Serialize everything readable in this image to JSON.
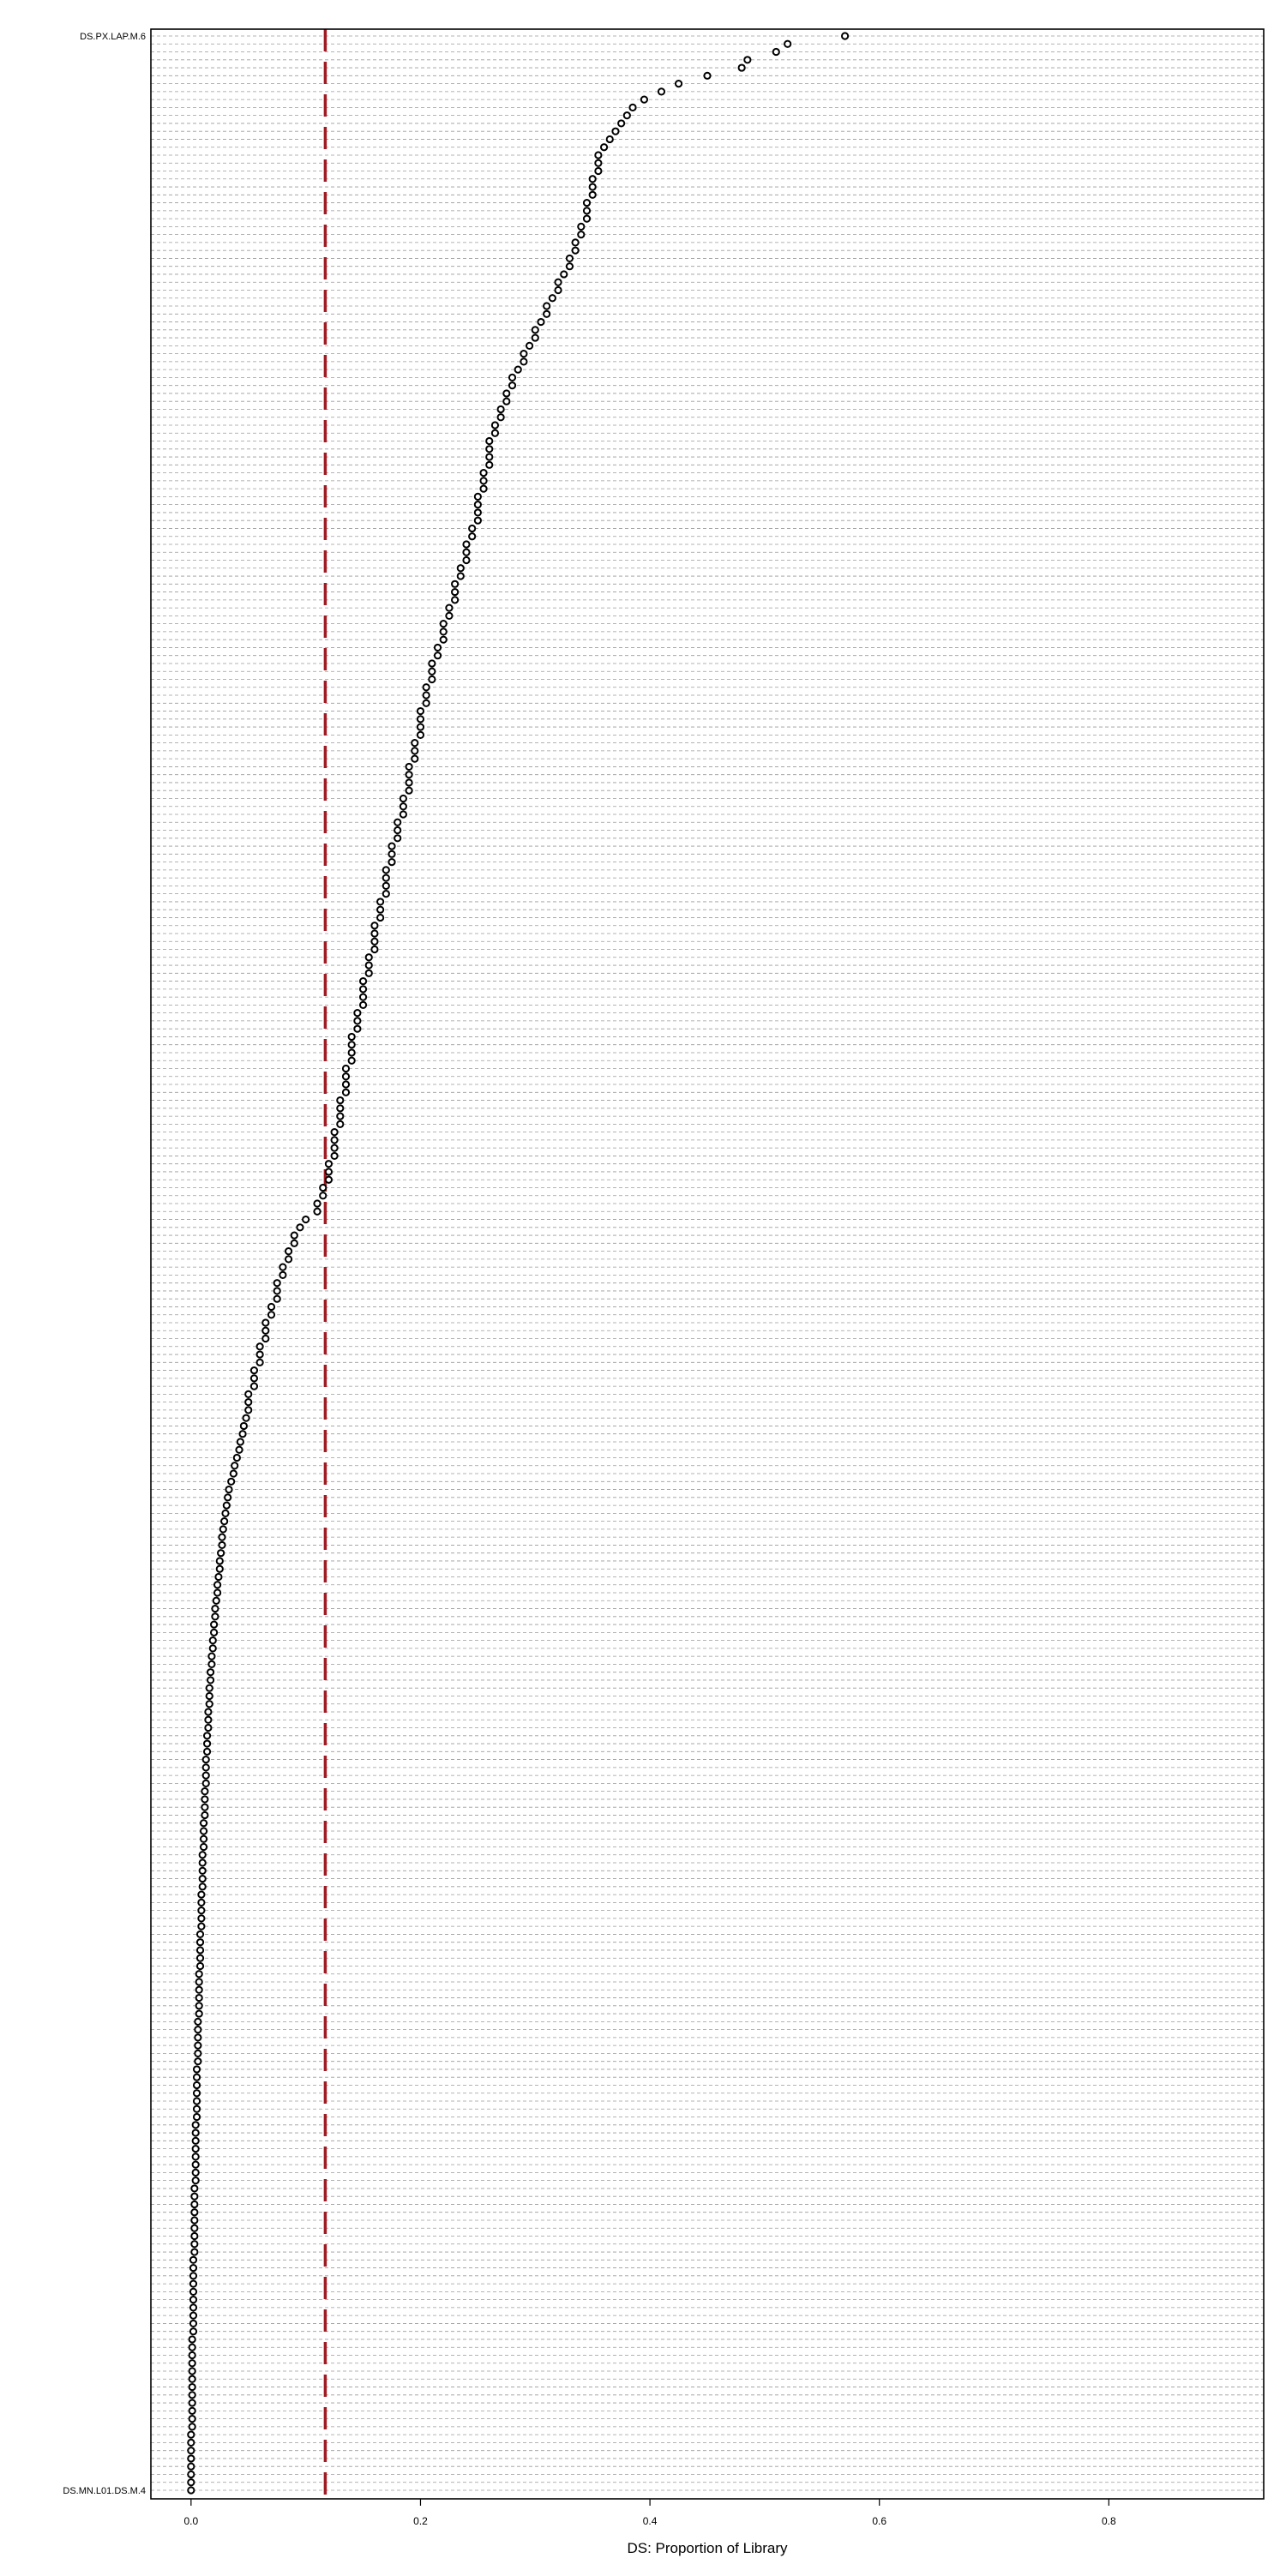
{
  "chart_data": {
    "type": "scatter",
    "xlabel": "DS: Proportion of Library",
    "xlim": [
      -0.035,
      0.935
    ],
    "xticks": [
      0.0,
      0.2,
      0.4,
      0.6,
      0.8
    ],
    "xtick_labels": [
      "0.0",
      "0.2",
      "0.4",
      "0.6",
      "0.8"
    ],
    "reference_line": {
      "x": 0.117,
      "color": "#a01c24",
      "style": "dashed"
    },
    "grid": "dashed horizontal per row",
    "visible_row_labels": [
      "DS.PX.LAP.M.6",
      "DS.MN.L01.DS.M.4"
    ],
    "values": [
      0.57,
      0.52,
      0.51,
      0.485,
      0.48,
      0.45,
      0.425,
      0.41,
      0.395,
      0.385,
      0.38,
      0.375,
      0.37,
      0.365,
      0.36,
      0.355,
      0.355,
      0.355,
      0.35,
      0.35,
      0.35,
      0.345,
      0.345,
      0.345,
      0.34,
      0.34,
      0.335,
      0.335,
      0.33,
      0.33,
      0.325,
      0.32,
      0.32,
      0.315,
      0.31,
      0.31,
      0.305,
      0.3,
      0.3,
      0.295,
      0.29,
      0.29,
      0.285,
      0.28,
      0.28,
      0.275,
      0.275,
      0.27,
      0.27,
      0.265,
      0.265,
      0.26,
      0.26,
      0.26,
      0.26,
      0.255,
      0.255,
      0.255,
      0.25,
      0.25,
      0.25,
      0.25,
      0.245,
      0.245,
      0.24,
      0.24,
      0.24,
      0.235,
      0.235,
      0.23,
      0.23,
      0.23,
      0.225,
      0.225,
      0.22,
      0.22,
      0.22,
      0.215,
      0.215,
      0.21,
      0.21,
      0.21,
      0.205,
      0.205,
      0.205,
      0.2,
      0.2,
      0.2,
      0.2,
      0.195,
      0.195,
      0.195,
      0.19,
      0.19,
      0.19,
      0.19,
      0.185,
      0.185,
      0.185,
      0.18,
      0.18,
      0.18,
      0.175,
      0.175,
      0.175,
      0.17,
      0.17,
      0.17,
      0.17,
      0.165,
      0.165,
      0.165,
      0.16,
      0.16,
      0.16,
      0.16,
      0.155,
      0.155,
      0.155,
      0.15,
      0.15,
      0.15,
      0.15,
      0.145,
      0.145,
      0.145,
      0.14,
      0.14,
      0.14,
      0.14,
      0.135,
      0.135,
      0.135,
      0.135,
      0.13,
      0.13,
      0.13,
      0.13,
      0.125,
      0.125,
      0.125,
      0.125,
      0.12,
      0.12,
      0.12,
      0.115,
      0.115,
      0.11,
      0.11,
      0.1,
      0.095,
      0.09,
      0.09,
      0.085,
      0.085,
      0.08,
      0.08,
      0.075,
      0.075,
      0.075,
      0.07,
      0.07,
      0.065,
      0.065,
      0.065,
      0.06,
      0.06,
      0.06,
      0.055,
      0.055,
      0.055,
      0.05,
      0.05,
      0.05,
      0.048,
      0.046,
      0.045,
      0.043,
      0.042,
      0.04,
      0.038,
      0.037,
      0.035,
      0.033,
      0.032,
      0.031,
      0.03,
      0.029,
      0.028,
      0.027,
      0.027,
      0.026,
      0.025,
      0.025,
      0.024,
      0.023,
      0.023,
      0.022,
      0.021,
      0.021,
      0.02,
      0.02,
      0.019,
      0.019,
      0.018,
      0.018,
      0.017,
      0.017,
      0.016,
      0.016,
      0.016,
      0.015,
      0.015,
      0.015,
      0.014,
      0.014,
      0.014,
      0.013,
      0.013,
      0.013,
      0.013,
      0.012,
      0.012,
      0.012,
      0.012,
      0.011,
      0.011,
      0.011,
      0.011,
      0.01,
      0.01,
      0.01,
      0.01,
      0.01,
      0.009,
      0.009,
      0.009,
      0.009,
      0.009,
      0.008,
      0.008,
      0.008,
      0.008,
      0.008,
      0.007,
      0.007,
      0.007,
      0.007,
      0.007,
      0.007,
      0.006,
      0.006,
      0.006,
      0.006,
      0.006,
      0.006,
      0.005,
      0.005,
      0.005,
      0.005,
      0.005,
      0.005,
      0.005,
      0.004,
      0.004,
      0.004,
      0.004,
      0.004,
      0.004,
      0.004,
      0.004,
      0.003,
      0.003,
      0.003,
      0.003,
      0.003,
      0.003,
      0.003,
      0.003,
      0.003,
      0.002,
      0.002,
      0.002,
      0.002,
      0.002,
      0.002,
      0.002,
      0.002,
      0.002,
      0.002,
      0.001,
      0.001,
      0.001,
      0.001,
      0.001,
      0.001,
      0.001,
      0.001,
      0.001,
      0.001,
      0.001,
      0.001,
      0.0,
      0.0,
      0.0,
      0.0,
      0.0,
      0.0,
      0.0,
      0.0
    ],
    "colors": {
      "points": "#000000",
      "grid": "#9a9a9a",
      "reference": "#a01c24",
      "frame": "#000000"
    }
  }
}
